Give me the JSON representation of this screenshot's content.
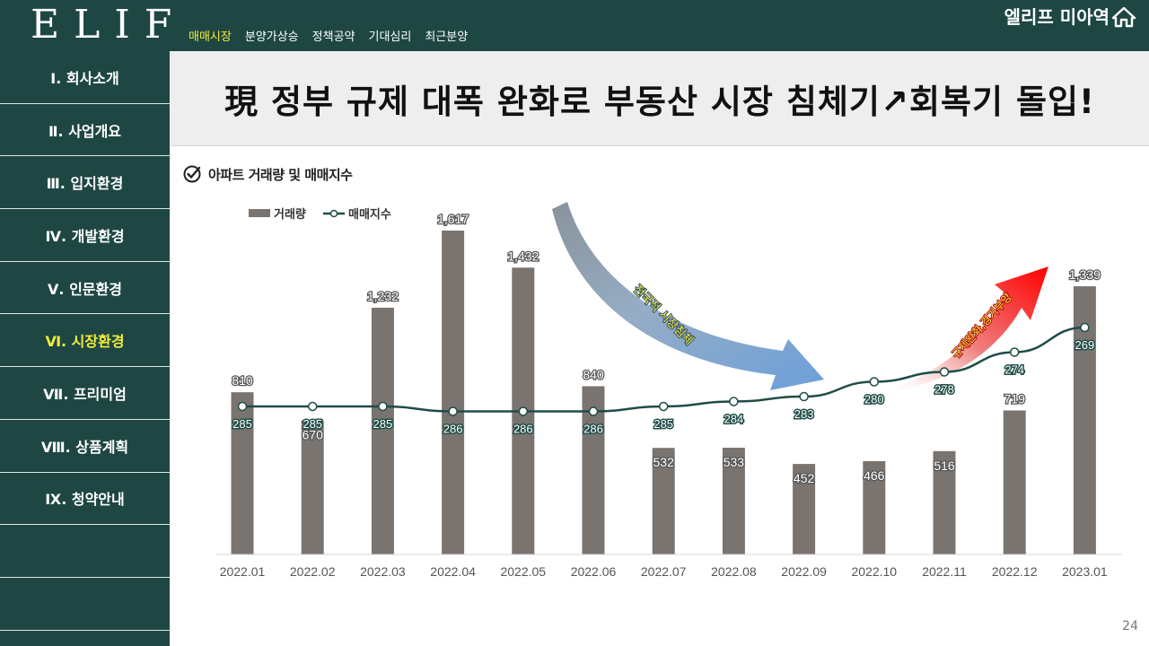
{
  "header": {
    "logo": "ELIF",
    "nav": [
      "매매시장",
      "분양가상승",
      "정책공약",
      "기대심리",
      "최근분양"
    ],
    "active_nav": 0,
    "brand": "엘리프 미아역",
    "brand_icon": "home-icon"
  },
  "sidebar": {
    "items": [
      {
        "label": "Ⅰ. 회사소개"
      },
      {
        "label": "Ⅱ. 사업개요"
      },
      {
        "label": "Ⅲ. 입지환경"
      },
      {
        "label": "Ⅳ. 개발환경"
      },
      {
        "label": "Ⅴ. 인문환경"
      },
      {
        "label": "Ⅵ. 시장환경"
      },
      {
        "label": "Ⅶ. 프리미엄"
      },
      {
        "label": "Ⅷ. 상품계획"
      },
      {
        "label": "Ⅸ. 청약안내"
      },
      {
        "label": ""
      },
      {
        "label": ""
      }
    ],
    "active_index": 5
  },
  "page": {
    "title": "現 정부 규제 대폭 완화로 부동산 시장 침체기↗회복기 돌입!",
    "chart_heading": "아파트 거래량 및 매매지수",
    "page_number": "24"
  },
  "colors": {
    "dark_green": "#1e4743",
    "highlight_yellow": "#f2ec3c",
    "bar_gray": "#7a7470",
    "line_green": "#1f4d47",
    "arrow_blue": "#6f9fcf",
    "arrow_red": "#e81c1c"
  },
  "chart_data": {
    "type": "bar",
    "categories": [
      "2022.01",
      "2022.02",
      "2022.03",
      "2022.04",
      "2022.05",
      "2022.06",
      "2022.07",
      "2022.08",
      "2022.09",
      "2022.10",
      "2022.11",
      "2022.12",
      "2023.01"
    ],
    "series": [
      {
        "name": "거래량",
        "type": "bar",
        "values": [
          810,
          670,
          1232,
          1617,
          1432,
          840,
          532,
          533,
          452,
          466,
          516,
          719,
          1339
        ],
        "labels": [
          "810",
          "670",
          "1,232",
          "1,617",
          "1,432",
          "840",
          "532",
          "533",
          "452",
          "466",
          "516",
          "719",
          "1,339"
        ]
      },
      {
        "name": "매매지수",
        "type": "line",
        "values": [
          285,
          285,
          285,
          286,
          286,
          286,
          285,
          284,
          283,
          280,
          278,
          274,
          269
        ]
      }
    ],
    "legend": "top-left",
    "grid": false,
    "annotations": [
      "전국적 시장침체",
      "규제완화,경기부양"
    ]
  }
}
